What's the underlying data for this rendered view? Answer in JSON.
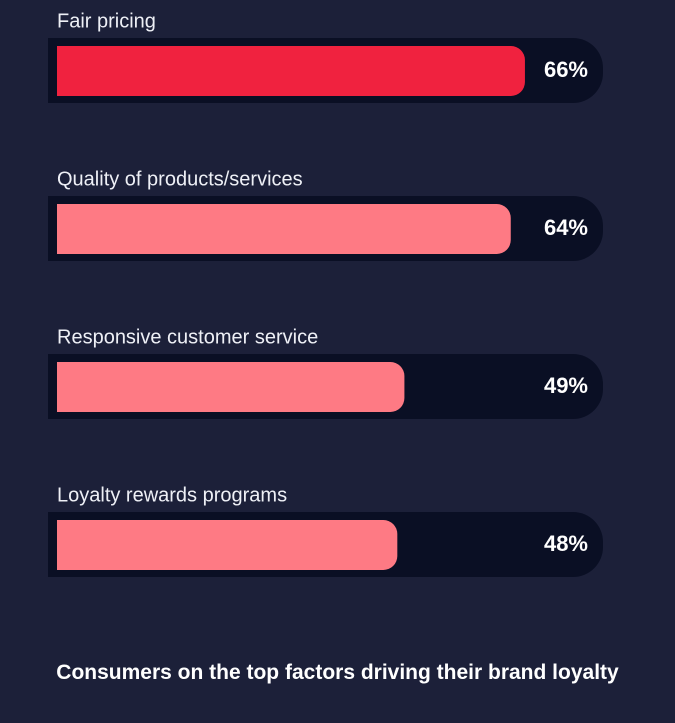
{
  "chart_data": {
    "type": "bar",
    "orientation": "horizontal",
    "title": "Consumers on the top factors driving their brand loyalty",
    "categories": [
      "Fair pricing",
      "Quality of products/services",
      "Responsive customer service",
      "Loyalty rewards programs"
    ],
    "values": [
      66,
      64,
      49,
      48
    ],
    "value_labels": [
      "66%",
      "64%",
      "49%",
      "48%"
    ],
    "colors": [
      "#f0223f",
      "#fe7a84",
      "#fe7a84",
      "#fe7a84"
    ],
    "track_color": "#0a0f24"
  }
}
